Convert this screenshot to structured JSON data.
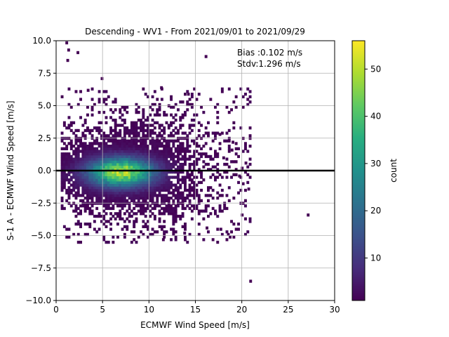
{
  "chart_data": {
    "type": "heatmap",
    "title": "Descending - WV1 - From 2021/09/01 to 2021/09/29",
    "xlabel": "ECMWF Wind Speed [m/s]",
    "ylabel": "S-1 A - ECMWF Wind Speed [m/s]",
    "xlim": [
      0,
      30
    ],
    "ylim": [
      -10,
      10
    ],
    "xticks": [
      "0",
      "5",
      "10",
      "15",
      "20",
      "25",
      "30"
    ],
    "yticks": [
      "−10.0",
      "−7.5",
      "−5.0",
      "−2.5",
      "0.0",
      "2.5",
      "5.0",
      "7.5",
      "10.0"
    ],
    "grid": true,
    "annotations": [
      "Bias :0.102 m/s",
      "Stdv:1.296 m/s"
    ],
    "zero_line_y": 0,
    "colorbar": {
      "label": "count",
      "range": [
        1,
        56
      ],
      "ticks": [
        "10",
        "20",
        "30",
        "40",
        "50"
      ],
      "colormap": "viridis"
    },
    "density_core": {
      "center_x": 7.0,
      "center_y": -0.1,
      "peak_count": 55
    },
    "outliers": [
      [
        1.0,
        9.75
      ],
      [
        1.2,
        9.2
      ],
      [
        2.2,
        9.0
      ],
      [
        1.1,
        8.4
      ],
      [
        16.0,
        8.7
      ],
      [
        4.8,
        7.0
      ],
      [
        27.0,
        -3.5
      ],
      [
        20.8,
        -8.6
      ],
      [
        18.6,
        -5.2
      ],
      [
        18.4,
        -5.0
      ],
      [
        17.6,
        -4.6
      ],
      [
        13.7,
        -4.9
      ],
      [
        11.4,
        -5.4
      ],
      [
        16.1,
        -4.5
      ],
      [
        19.9,
        -3.5
      ],
      [
        20.0,
        -1.1
      ],
      [
        20.6,
        -1.5
      ],
      [
        19.6,
        -0.5
      ],
      [
        19.9,
        0.1
      ],
      [
        20.3,
        0.5
      ],
      [
        17.9,
        0.9
      ],
      [
        18.8,
        1.5
      ],
      [
        18.9,
        2.1
      ],
      [
        17.5,
        2.7
      ],
      [
        12.0,
        4.9
      ],
      [
        14.1,
        5.8
      ],
      [
        11.2,
        6.3
      ],
      [
        3.3,
        6.1
      ]
    ]
  }
}
